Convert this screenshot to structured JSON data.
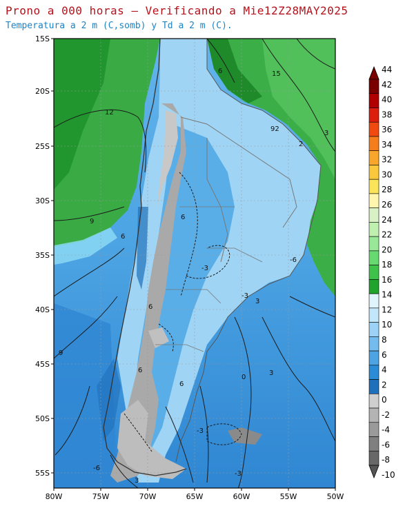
{
  "header": {
    "title": "Prono a 000 horas — Verificando a Mie12Z28MAY2025",
    "subtitle": "Temperatura a 2 m (C,somb) y Td a 2 m (C)."
  },
  "map": {
    "lat_labels": [
      "15S",
      "20S",
      "25S",
      "30S",
      "35S",
      "40S",
      "45S",
      "50S",
      "55S"
    ],
    "lon_labels": [
      "80W",
      "75W",
      "70W",
      "65W",
      "60W",
      "55W",
      "50W"
    ],
    "contour_labels": [
      "12",
      "9",
      "6",
      "6",
      "-3",
      "0",
      "-3",
      "3",
      "3",
      "-6",
      "15",
      "92",
      "2",
      "6",
      "3",
      "-6",
      "9",
      "6",
      "-3",
      "-3",
      "6",
      "3",
      "6"
    ]
  },
  "colorbar": {
    "labels": [
      "44",
      "42",
      "40",
      "38",
      "36",
      "34",
      "32",
      "30",
      "28",
      "26",
      "24",
      "22",
      "20",
      "18",
      "16",
      "14",
      "12",
      "10",
      "8",
      "6",
      "4",
      "2",
      "0",
      "-2",
      "-4",
      "-6",
      "-8",
      "-10"
    ],
    "colors": [
      "#7a0000",
      "#b00000",
      "#dc1e0c",
      "#f04a10",
      "#f57d1c",
      "#f8a62c",
      "#fac83c",
      "#fbe35a",
      "#fff7ad",
      "#d8f2c6",
      "#c0f0b0",
      "#98e898",
      "#68d870",
      "#3ec24a",
      "#20a42c",
      "#e0f4fc",
      "#c2e6fa",
      "#9bd2f5",
      "#74bbee",
      "#4ea3e3",
      "#2a8bd6",
      "#1f70bb",
      "#cfcfcf",
      "#b4b4b4",
      "#9a9a9a",
      "#808080",
      "#686868"
    ]
  },
  "colors": {
    "land_green": "#2e9e3c",
    "ocean_blue": "#2f8ad6",
    "light_blue": "#b8e0f8",
    "grey_andes": "#a8a8a8",
    "title_red": "#b5121b",
    "subtitle_blue": "#1d83c6"
  }
}
